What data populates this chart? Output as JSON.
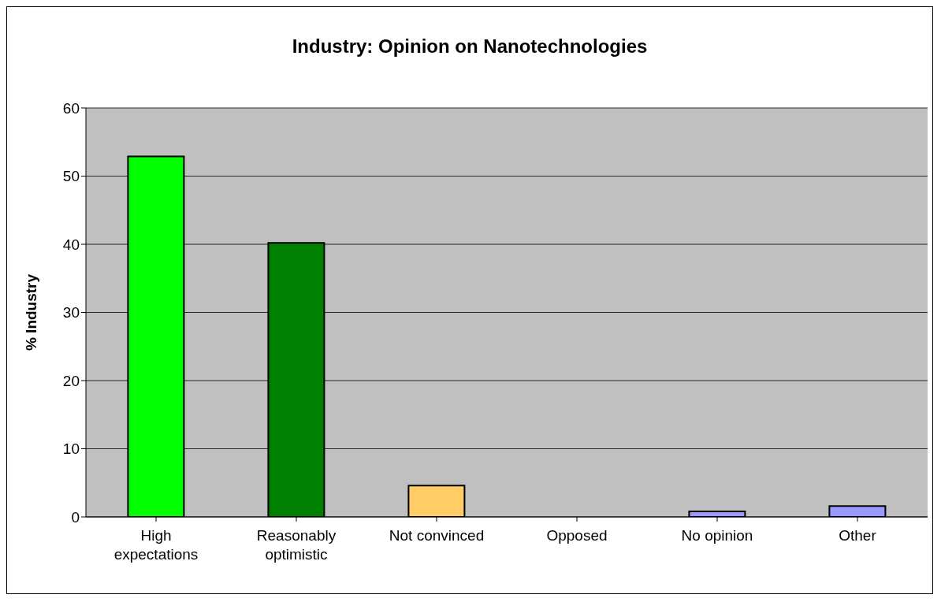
{
  "chart_data": {
    "type": "bar",
    "title": "Industry: Opinion on Nanotechnologies",
    "ylabel": "% Industry",
    "categories": [
      "High expectations",
      "Reasonably optimistic",
      "Not convinced",
      "Opposed",
      "No opinion",
      "Other"
    ],
    "values": [
      52.9,
      40.2,
      4.6,
      0,
      0.8,
      1.6
    ],
    "colors": [
      "#00ff00",
      "#008000",
      "#ffcc66",
      "#9999ff",
      "#9999ff",
      "#9999ff"
    ],
    "ylim": [
      0,
      60
    ],
    "yticks": [
      0,
      10,
      20,
      30,
      40,
      50,
      60
    ],
    "grid": "y",
    "legend": false
  }
}
